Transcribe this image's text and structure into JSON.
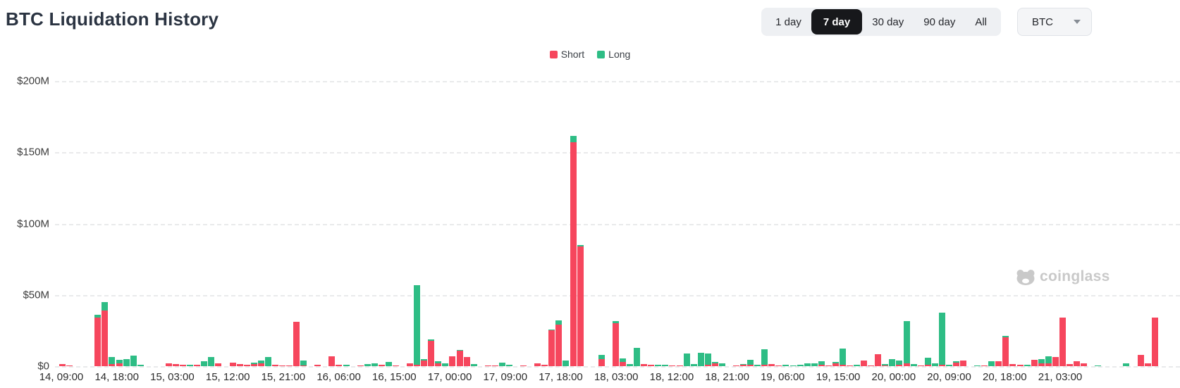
{
  "header": {
    "title": "BTC Liquidation History"
  },
  "controls": {
    "range_options": [
      {
        "label": "1 day",
        "selected": false
      },
      {
        "label": "7 day",
        "selected": true
      },
      {
        "label": "30 day",
        "selected": false
      },
      {
        "label": "90 day",
        "selected": false
      },
      {
        "label": "All",
        "selected": false
      }
    ],
    "symbol_select": {
      "value": "BTC"
    }
  },
  "legend": [
    {
      "name": "Short",
      "color": "#f6465d"
    },
    {
      "name": "Long",
      "color": "#2ebd85"
    }
  ],
  "watermark": {
    "text": "coinglass"
  },
  "chart_data": {
    "type": "bar",
    "stacked": true,
    "title": "BTC Liquidation History",
    "unit": "USD millions",
    "ylim": [
      0,
      200
    ],
    "grid": "horizontal-dashed",
    "legend_position": "top-center",
    "y_ticks": [
      {
        "label": "$200M",
        "value": 200
      },
      {
        "label": "$150M",
        "value": 150
      },
      {
        "label": "$100M",
        "value": 100
      },
      {
        "label": "$50M",
        "value": 50
      },
      {
        "label": "$0",
        "value": 0
      }
    ],
    "x_tick_labels": [
      "14, 09:00",
      "14, 18:00",
      "15, 03:00",
      "15, 12:00",
      "15, 21:00",
      "16, 06:00",
      "16, 15:00",
      "17, 00:00",
      "17, 09:00",
      "17, 18:00",
      "18, 03:00",
      "18, 12:00",
      "18, 21:00",
      "19, 06:00",
      "19, 15:00",
      "20, 00:00",
      "20, 09:00",
      "20, 18:00",
      "21, 03:00"
    ],
    "series_names": {
      "s": "Short",
      "l": "Long"
    },
    "total_slots": 158,
    "bars": [
      {
        "i": 0,
        "s": 1.5,
        "l": 0
      },
      {
        "i": 1,
        "s": 0.7,
        "l": 0
      },
      {
        "i": 5,
        "s": 34,
        "l": 2
      },
      {
        "i": 6,
        "s": 39,
        "l": 6
      },
      {
        "i": 7,
        "s": 1.5,
        "l": 5
      },
      {
        "i": 8,
        "s": 2,
        "l": 2.5
      },
      {
        "i": 9,
        "s": 0,
        "l": 5
      },
      {
        "i": 10,
        "s": 0,
        "l": 7.5
      },
      {
        "i": 11,
        "s": 0,
        "l": 1
      },
      {
        "i": 15,
        "s": 2,
        "l": 0
      },
      {
        "i": 16,
        "s": 1.5,
        "l": 0
      },
      {
        "i": 17,
        "s": 1,
        "l": 0
      },
      {
        "i": 18,
        "s": 0,
        "l": 1
      },
      {
        "i": 19,
        "s": 0.8,
        "l": 0
      },
      {
        "i": 20,
        "s": 0,
        "l": 3.5
      },
      {
        "i": 21,
        "s": 0,
        "l": 6.5
      },
      {
        "i": 22,
        "s": 2,
        "l": 0
      },
      {
        "i": 24,
        "s": 2.5,
        "l": 0
      },
      {
        "i": 25,
        "s": 1.5,
        "l": 0
      },
      {
        "i": 26,
        "s": 1,
        "l": 0
      },
      {
        "i": 27,
        "s": 1.5,
        "l": 1
      },
      {
        "i": 28,
        "s": 2,
        "l": 2
      },
      {
        "i": 29,
        "s": 0,
        "l": 6.5
      },
      {
        "i": 30,
        "s": 1,
        "l": 0
      },
      {
        "i": 31,
        "s": 0.6,
        "l": 0
      },
      {
        "i": 32,
        "s": 0.6,
        "l": 0
      },
      {
        "i": 33,
        "s": 31,
        "l": 0
      },
      {
        "i": 34,
        "s": 0.5,
        "l": 3.5
      },
      {
        "i": 36,
        "s": 1,
        "l": 0
      },
      {
        "i": 38,
        "s": 7,
        "l": 0
      },
      {
        "i": 39,
        "s": 1,
        "l": 0
      },
      {
        "i": 40,
        "s": 0,
        "l": 0.8
      },
      {
        "i": 42,
        "s": 0.5,
        "l": 0
      },
      {
        "i": 43,
        "s": 0,
        "l": 1.5
      },
      {
        "i": 44,
        "s": 0,
        "l": 2.2
      },
      {
        "i": 45,
        "s": 1,
        "l": 0
      },
      {
        "i": 46,
        "s": 0,
        "l": 3
      },
      {
        "i": 47,
        "s": 0.5,
        "l": 0
      },
      {
        "i": 49,
        "s": 2,
        "l": 0
      },
      {
        "i": 50,
        "s": 1,
        "l": 56
      },
      {
        "i": 51,
        "s": 4,
        "l": 1
      },
      {
        "i": 52,
        "s": 18,
        "l": 1
      },
      {
        "i": 53,
        "s": 2,
        "l": 1.5
      },
      {
        "i": 54,
        "s": 0,
        "l": 2
      },
      {
        "i": 55,
        "s": 7,
        "l": 0
      },
      {
        "i": 56,
        "s": 11,
        "l": 0.5
      },
      {
        "i": 57,
        "s": 6.5,
        "l": 0
      },
      {
        "i": 58,
        "s": 0,
        "l": 1.5
      },
      {
        "i": 60,
        "s": 0.5,
        "l": 0
      },
      {
        "i": 61,
        "s": 0.5,
        "l": 0
      },
      {
        "i": 62,
        "s": 0,
        "l": 2.5
      },
      {
        "i": 63,
        "s": 0,
        "l": 1
      },
      {
        "i": 65,
        "s": 0.5,
        "l": 0
      },
      {
        "i": 67,
        "s": 2,
        "l": 0
      },
      {
        "i": 68,
        "s": 1,
        "l": 0
      },
      {
        "i": 69,
        "s": 25,
        "l": 0.5
      },
      {
        "i": 70,
        "s": 29,
        "l": 3
      },
      {
        "i": 71,
        "s": 0,
        "l": 4
      },
      {
        "i": 72,
        "s": 157,
        "l": 4.5
      },
      {
        "i": 73,
        "s": 84,
        "l": 1
      },
      {
        "i": 76,
        "s": 5,
        "l": 3
      },
      {
        "i": 78,
        "s": 30,
        "l": 1.5
      },
      {
        "i": 79,
        "s": 3,
        "l": 2.5
      },
      {
        "i": 80,
        "s": 0,
        "l": 1.5
      },
      {
        "i": 81,
        "s": 0,
        "l": 13
      },
      {
        "i": 82,
        "s": 1.5,
        "l": 0
      },
      {
        "i": 83,
        "s": 1,
        "l": 0
      },
      {
        "i": 84,
        "s": 0,
        "l": 1
      },
      {
        "i": 85,
        "s": 0,
        "l": 0.8
      },
      {
        "i": 86,
        "s": 0.5,
        "l": 0
      },
      {
        "i": 87,
        "s": 0.5,
        "l": 0
      },
      {
        "i": 88,
        "s": 0,
        "l": 9
      },
      {
        "i": 89,
        "s": 0,
        "l": 1.6
      },
      {
        "i": 90,
        "s": 0,
        "l": 9.3
      },
      {
        "i": 91,
        "s": 1,
        "l": 8
      },
      {
        "i": 92,
        "s": 2,
        "l": 1
      },
      {
        "i": 93,
        "s": 0,
        "l": 2.1
      },
      {
        "i": 95,
        "s": 0.5,
        "l": 0
      },
      {
        "i": 96,
        "s": 1,
        "l": 0.5
      },
      {
        "i": 97,
        "s": 1,
        "l": 3.6
      },
      {
        "i": 98,
        "s": 0,
        "l": 1
      },
      {
        "i": 99,
        "s": 1,
        "l": 10.8
      },
      {
        "i": 100,
        "s": 1.5,
        "l": 0
      },
      {
        "i": 101,
        "s": 0.5,
        "l": 0
      },
      {
        "i": 102,
        "s": 0,
        "l": 0.8
      },
      {
        "i": 103,
        "s": 0,
        "l": 0.5
      },
      {
        "i": 104,
        "s": 0,
        "l": 0.8
      },
      {
        "i": 105,
        "s": 0,
        "l": 2.1
      },
      {
        "i": 106,
        "s": 0,
        "l": 2
      },
      {
        "i": 107,
        "s": 0.8,
        "l": 2.5
      },
      {
        "i": 108,
        "s": 0.4,
        "l": 0
      },
      {
        "i": 109,
        "s": 2,
        "l": 1
      },
      {
        "i": 110,
        "s": 1,
        "l": 11.6
      },
      {
        "i": 111,
        "s": 0.4,
        "l": 0
      },
      {
        "i": 112,
        "s": 0,
        "l": 1
      },
      {
        "i": 113,
        "s": 4,
        "l": 0
      },
      {
        "i": 114,
        "s": 0.5,
        "l": 0
      },
      {
        "i": 115,
        "s": 8.5,
        "l": 0
      },
      {
        "i": 116,
        "s": 0.5,
        "l": 1
      },
      {
        "i": 117,
        "s": 0,
        "l": 5
      },
      {
        "i": 118,
        "s": 1,
        "l": 2.8
      },
      {
        "i": 119,
        "s": 2,
        "l": 29.5
      },
      {
        "i": 120,
        "s": 0,
        "l": 1.6
      },
      {
        "i": 121,
        "s": 0.7,
        "l": 0
      },
      {
        "i": 122,
        "s": 1,
        "l": 4.7
      },
      {
        "i": 123,
        "s": 0,
        "l": 2.1
      },
      {
        "i": 124,
        "s": 1,
        "l": 36.6
      },
      {
        "i": 125,
        "s": 0,
        "l": 1.1
      },
      {
        "i": 126,
        "s": 2.5,
        "l": 1
      },
      {
        "i": 127,
        "s": 4,
        "l": 0
      },
      {
        "i": 129,
        "s": 0,
        "l": 0.5
      },
      {
        "i": 130,
        "s": 0.5,
        "l": 0
      },
      {
        "i": 131,
        "s": 0,
        "l": 3.3
      },
      {
        "i": 132,
        "s": 3.3,
        "l": 0
      },
      {
        "i": 133,
        "s": 20.5,
        "l": 0.8
      },
      {
        "i": 134,
        "s": 1.5,
        "l": 0
      },
      {
        "i": 135,
        "s": 1,
        "l": 0
      },
      {
        "i": 136,
        "s": 0,
        "l": 1
      },
      {
        "i": 137,
        "s": 4.6,
        "l": 0
      },
      {
        "i": 138,
        "s": 2,
        "l": 3
      },
      {
        "i": 139,
        "s": 2,
        "l": 5
      },
      {
        "i": 140,
        "s": 6.2,
        "l": 0
      },
      {
        "i": 141,
        "s": 34,
        "l": 0
      },
      {
        "i": 142,
        "s": 1.5,
        "l": 0
      },
      {
        "i": 143,
        "s": 3.3,
        "l": 0
      },
      {
        "i": 144,
        "s": 2,
        "l": 0
      },
      {
        "i": 146,
        "s": 0,
        "l": 0.7
      },
      {
        "i": 150,
        "s": 0,
        "l": 2
      },
      {
        "i": 152,
        "s": 8,
        "l": 0
      },
      {
        "i": 153,
        "s": 2,
        "l": 0
      },
      {
        "i": 154,
        "s": 34,
        "l": 0
      }
    ]
  }
}
